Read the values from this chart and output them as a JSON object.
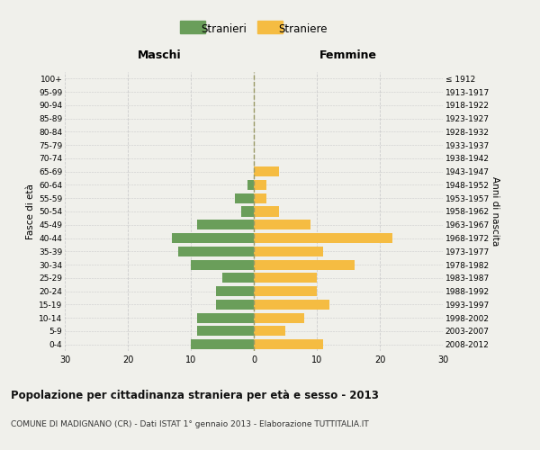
{
  "age_groups": [
    "0-4",
    "5-9",
    "10-14",
    "15-19",
    "20-24",
    "25-29",
    "30-34",
    "35-39",
    "40-44",
    "45-49",
    "50-54",
    "55-59",
    "60-64",
    "65-69",
    "70-74",
    "75-79",
    "80-84",
    "85-89",
    "90-94",
    "95-99",
    "100+"
  ],
  "birth_years": [
    "2008-2012",
    "2003-2007",
    "1998-2002",
    "1993-1997",
    "1988-1992",
    "1983-1987",
    "1978-1982",
    "1973-1977",
    "1968-1972",
    "1963-1967",
    "1958-1962",
    "1953-1957",
    "1948-1952",
    "1943-1947",
    "1938-1942",
    "1933-1937",
    "1928-1932",
    "1923-1927",
    "1918-1922",
    "1913-1917",
    "≤ 1912"
  ],
  "males": [
    10,
    9,
    9,
    6,
    6,
    5,
    10,
    12,
    13,
    9,
    2,
    3,
    1,
    0,
    0,
    0,
    0,
    0,
    0,
    0,
    0
  ],
  "females": [
    11,
    5,
    8,
    12,
    10,
    10,
    16,
    11,
    22,
    9,
    4,
    2,
    2,
    4,
    0,
    0,
    0,
    0,
    0,
    0,
    0
  ],
  "male_color": "#6a9e5a",
  "female_color": "#f5bc42",
  "xlim": 30,
  "title": "Popolazione per cittadinanza straniera per età e sesso - 2013",
  "subtitle": "COMUNE DI MADIGNANO (CR) - Dati ISTAT 1° gennaio 2013 - Elaborazione TUTTITALIA.IT",
  "left_label": "Maschi",
  "right_label": "Femmine",
  "ylabel_left": "Fasce di età",
  "ylabel_right": "Anni di nascita",
  "legend_male": "Stranieri",
  "legend_female": "Straniere",
  "background_color": "#f0f0eb",
  "grid_color": "#cccccc",
  "bar_height": 0.75
}
